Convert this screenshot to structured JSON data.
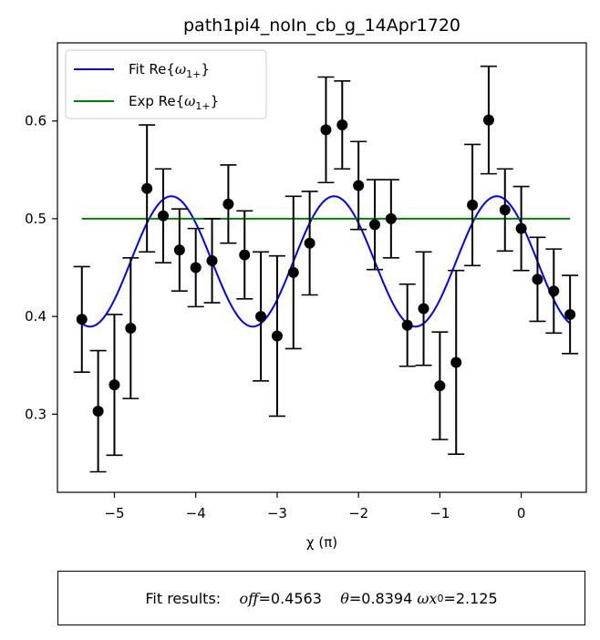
{
  "chart_data": {
    "type": "scatter",
    "title": "path1pi4_noIn_cb_g_14Apr1720",
    "xlabel": "χ (π)",
    "ylabel": "",
    "xlim": [
      -5.7,
      0.8
    ],
    "ylim": [
      0.22,
      0.68
    ],
    "xticks": [
      -5,
      -4,
      -3,
      -2,
      -1,
      0
    ],
    "xtick_labels": [
      "−5",
      "−4",
      "−3",
      "−2",
      "−1",
      "0"
    ],
    "yticks": [
      0.3,
      0.4,
      0.5,
      0.6
    ],
    "ytick_labels": [
      "0.3",
      "0.4",
      "0.5",
      "0.6"
    ],
    "grid": false,
    "legend_position": "top-left",
    "legend": {
      "fit_prefix": "Fit Re{",
      "exp_prefix": "Exp Re{",
      "symbol": "ω",
      "subscript": "1+",
      "suffix": "}"
    },
    "data_points": {
      "marker_color": "#000000",
      "x": [
        -5.4,
        -5.2,
        -5.0,
        -4.8,
        -4.6,
        -4.4,
        -4.2,
        -4.0,
        -3.8,
        -3.6,
        -3.4,
        -3.2,
        -3.0,
        -2.8,
        -2.6,
        -2.4,
        -2.2,
        -2.0,
        -1.8,
        -1.6,
        -1.4,
        -1.2,
        -1.0,
        -0.8,
        -0.6,
        -0.4,
        -0.2,
        0.0,
        0.2,
        0.4,
        0.6
      ],
      "y": [
        0.397,
        0.303,
        0.33,
        0.388,
        0.531,
        0.503,
        0.468,
        0.45,
        0.457,
        0.515,
        0.463,
        0.4,
        0.38,
        0.445,
        0.475,
        0.591,
        0.596,
        0.534,
        0.494,
        0.5,
        0.391,
        0.408,
        0.329,
        0.353,
        0.514,
        0.601,
        0.509,
        0.49,
        0.438,
        0.426,
        0.402
      ],
      "err": [
        0.054,
        0.062,
        0.072,
        0.072,
        0.065,
        0.048,
        0.042,
        0.04,
        0.043,
        0.04,
        0.045,
        0.066,
        0.082,
        0.078,
        0.053,
        0.054,
        0.045,
        0.045,
        0.046,
        0.04,
        0.042,
        0.058,
        0.055,
        0.094,
        0.062,
        0.055,
        0.042,
        0.043,
        0.043,
        0.043,
        0.04
      ]
    },
    "series": [
      {
        "name": "Fit Re{ω1+}",
        "color": "#0000ff",
        "kind": "cosine-fit",
        "offset": 0.4563,
        "amplitude": 0.0667,
        "period": 2.0,
        "peak_x": -0.3,
        "x_range": [
          -5.4,
          0.6
        ]
      },
      {
        "name": "Exp Re{ω1+}",
        "color": "#008000",
        "kind": "constant",
        "value": 0.5,
        "x_range": [
          -5.4,
          0.6
        ]
      }
    ]
  },
  "fit_results": {
    "label": "Fit results:",
    "off_sym": "off",
    "off_val": "=0.4563",
    "theta_sym": "θ",
    "theta_val": "=0.8394",
    "omega_sym": "ωx",
    "omega_sub": "0",
    "omega_val": "=2.125"
  }
}
